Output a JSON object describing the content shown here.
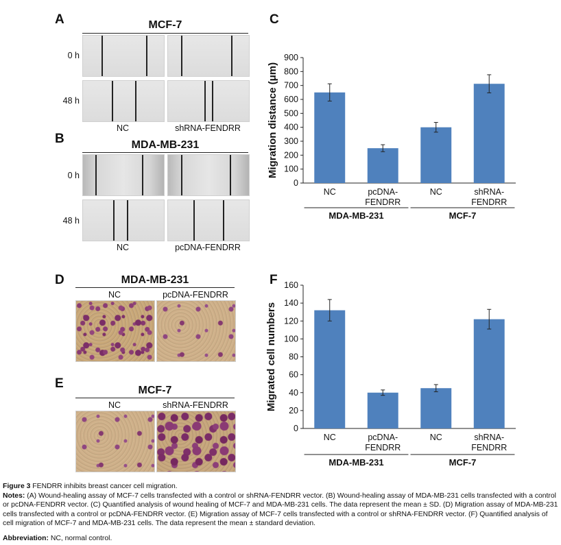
{
  "panels": {
    "A": {
      "letter": "A",
      "title": "MCF-7",
      "rows": [
        "0 h",
        "48 h"
      ],
      "cols": [
        "NC",
        "shRNA-FENDRR"
      ]
    },
    "B": {
      "letter": "B",
      "title": "MDA-MB-231",
      "rows": [
        "0 h",
        "48 h"
      ],
      "cols": [
        "NC",
        "pcDNA-FENDRR"
      ]
    },
    "C": {
      "letter": "C"
    },
    "D": {
      "letter": "D",
      "title": "MDA-MB-231",
      "cols": [
        "NC",
        "pcDNA-FENDRR"
      ]
    },
    "E": {
      "letter": "E",
      "title": "MCF-7",
      "cols": [
        "NC",
        "shRNA-FENDRR"
      ]
    },
    "F": {
      "letter": "F"
    }
  },
  "chart_data": [
    {
      "id": "C",
      "type": "bar",
      "categories": [
        "NC",
        "pcDNA-\nFENDRR",
        "NC",
        "shRNA-\nFENDRR"
      ],
      "groups": [
        {
          "label": "MDA-MB-231",
          "categories": [
            0,
            1
          ]
        },
        {
          "label": "MCF-7",
          "categories": [
            2,
            3
          ]
        }
      ],
      "values": [
        650,
        250,
        400,
        712
      ],
      "errors": [
        62,
        25,
        35,
        65
      ],
      "title": "",
      "xlabel": "",
      "ylabel": "Migration distance (μm)",
      "ylim": [
        0,
        900
      ],
      "yticks": [
        0,
        100,
        200,
        300,
        400,
        500,
        600,
        700,
        800,
        900
      ],
      "color": "#4f81bd",
      "grid": false
    },
    {
      "id": "F",
      "type": "bar",
      "categories": [
        "NC",
        "pcDNA-\nFENDRR",
        "NC",
        "shRNA-\nFENDRR"
      ],
      "groups": [
        {
          "label": "MDA-MB-231",
          "categories": [
            0,
            1
          ]
        },
        {
          "label": "MCF-7",
          "categories": [
            2,
            3
          ]
        }
      ],
      "values": [
        132,
        40,
        45,
        122
      ],
      "errors": [
        12,
        3,
        4,
        11
      ],
      "title": "",
      "xlabel": "",
      "ylabel": "Migrated cell numbers",
      "ylim": [
        0,
        160
      ],
      "yticks": [
        0,
        20,
        40,
        60,
        80,
        100,
        120,
        140,
        160
      ],
      "color": "#4f81bd",
      "grid": false
    }
  ],
  "caption": {
    "figure_label": "Figure 3",
    "figure_title": " FENDRR inhibits breast cancer cell migration.",
    "notes_label": "Notes:",
    "notes_text": " (A) Wound-healing assay of MCF-7 cells transfected with a control or shRNA-FENDRR vector. (B) Wound-healing assay of MDA-MB-231 cells transfected with a control or pcDNA-FENDRR vector. (C) Quantified analysis of wound healing of MCF-7 and MDA-MB-231 cells. The data represent the mean ± SD. (D) Migration assay of MDA-MB-231 cells transfected with a control or pcDNA-FENDRR vector. (E) Migration assay of MCF-7 cells transfected with a control or shRNA-FENDRR vector. (F) Quantified analysis of cell migration of MCF-7 and MDA-MB-231 cells. The data represent the mean ± standard deviation.",
    "abbrev_label": "Abbreviation:",
    "abbrev_text": " NC, normal control."
  }
}
